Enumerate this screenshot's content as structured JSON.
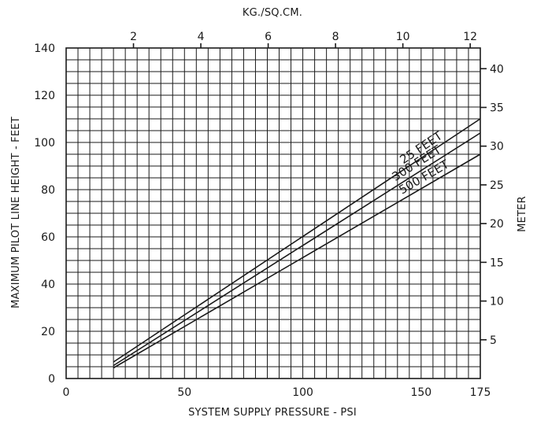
{
  "chart_data": {
    "type": "line",
    "title": "",
    "xlabel": "SYSTEM SUPPLY PRESSURE - PSI",
    "ylabel": "MAXIMUM PILOT LINE HEIGHT - FEET",
    "x2label": "KG./SQ.CM.",
    "y2label": "METER",
    "xlim": [
      0,
      175
    ],
    "ylim": [
      0,
      140
    ],
    "x2lim": [
      0,
      12.3
    ],
    "y2lim": [
      0,
      42.67
    ],
    "grid": true,
    "x_ticks": [
      0,
      50,
      100,
      150,
      175
    ],
    "x_tick_labels": [
      "0",
      "50",
      "100",
      "150",
      "175"
    ],
    "y_ticks": [
      0,
      20,
      40,
      60,
      80,
      100,
      120,
      140
    ],
    "y_tick_labels": [
      "0",
      "20",
      "40",
      "60",
      "80",
      "100",
      "120",
      "140"
    ],
    "x2_ticks": [
      2,
      4,
      6,
      8,
      10,
      12
    ],
    "x2_tick_labels": [
      "2",
      "4",
      "6",
      "8",
      "10",
      "12"
    ],
    "y2_ticks": [
      5,
      10,
      15,
      20,
      25,
      30,
      35,
      40
    ],
    "y2_tick_labels": [
      "5",
      "10",
      "15",
      "20",
      "25",
      "30",
      "35",
      "40"
    ],
    "series": [
      {
        "name": "25 FEET",
        "x": [
          20,
          175
        ],
        "y": [
          7,
          110
        ]
      },
      {
        "name": "300 FEET",
        "x": [
          20,
          175
        ],
        "y": [
          5.5,
          104
        ]
      },
      {
        "name": "500 FEET",
        "x": [
          20,
          175
        ],
        "y": [
          4.5,
          95
        ]
      }
    ]
  }
}
